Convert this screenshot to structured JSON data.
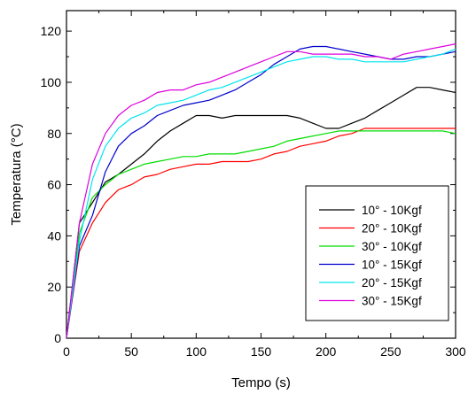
{
  "chart_data": {
    "type": "line",
    "xlabel": "Tempo (s)",
    "ylabel": "Temperatura (°C)",
    "xlim": [
      0,
      300
    ],
    "ylim": [
      0,
      128
    ],
    "xticks": [
      0,
      50,
      100,
      150,
      200,
      250,
      300
    ],
    "yticks": [
      0,
      20,
      40,
      60,
      80,
      100,
      120
    ],
    "grid": false,
    "legend_position": "bottom-right",
    "series": [
      {
        "name": "10° - 10Kgf",
        "color": "#000000",
        "x": [
          0,
          10,
          20,
          30,
          40,
          50,
          60,
          70,
          80,
          90,
          100,
          110,
          120,
          130,
          140,
          150,
          160,
          170,
          180,
          190,
          200,
          210,
          220,
          230,
          240,
          250,
          260,
          270,
          280,
          290,
          300
        ],
        "y": [
          0,
          45,
          53,
          61,
          64,
          68,
          72,
          77,
          81,
          84,
          87,
          87,
          86,
          87,
          87,
          87,
          87,
          87,
          86,
          84,
          82,
          82,
          84,
          86,
          89,
          92,
          95,
          98,
          98,
          97,
          96
        ]
      },
      {
        "name": "20° - 10Kgf",
        "color": "#ff0000",
        "x": [
          0,
          10,
          20,
          30,
          40,
          50,
          60,
          70,
          80,
          90,
          100,
          110,
          120,
          130,
          140,
          150,
          160,
          170,
          180,
          190,
          200,
          210,
          220,
          230,
          240,
          250,
          260,
          270,
          280,
          290,
          300
        ],
        "y": [
          0,
          34,
          45,
          53,
          58,
          60,
          63,
          64,
          66,
          67,
          68,
          68,
          69,
          69,
          69,
          70,
          72,
          73,
          75,
          76,
          77,
          79,
          80,
          82,
          82,
          82,
          82,
          82,
          82,
          82,
          82
        ]
      },
      {
        "name": "30° - 10Kgf",
        "color": "#00dd00",
        "x": [
          0,
          10,
          20,
          30,
          40,
          50,
          60,
          70,
          80,
          90,
          100,
          110,
          120,
          130,
          140,
          150,
          160,
          170,
          180,
          190,
          200,
          210,
          220,
          230,
          240,
          250,
          260,
          270,
          280,
          290,
          300
        ],
        "y": [
          0,
          41,
          55,
          60,
          64,
          66,
          68,
          69,
          70,
          71,
          71,
          72,
          72,
          72,
          73,
          74,
          75,
          77,
          78,
          79,
          80,
          81,
          81,
          81,
          81,
          81,
          81,
          81,
          81,
          81,
          80
        ]
      },
      {
        "name": "10° - 15Kgf",
        "color": "#0000cc",
        "x": [
          0,
          10,
          20,
          30,
          40,
          50,
          60,
          70,
          80,
          90,
          100,
          110,
          120,
          130,
          140,
          150,
          160,
          170,
          180,
          190,
          200,
          210,
          220,
          230,
          240,
          250,
          260,
          270,
          280,
          290,
          300
        ],
        "y": [
          0,
          36,
          48,
          65,
          75,
          80,
          83,
          87,
          89,
          91,
          92,
          93,
          95,
          97,
          100,
          103,
          107,
          110,
          113,
          114,
          114,
          113,
          112,
          111,
          110,
          109,
          109,
          110,
          110,
          111,
          112
        ]
      },
      {
        "name": "20° - 15Kgf",
        "color": "#00e5ee",
        "x": [
          0,
          10,
          20,
          30,
          40,
          50,
          60,
          70,
          80,
          90,
          100,
          110,
          120,
          130,
          140,
          150,
          160,
          170,
          180,
          190,
          200,
          210,
          220,
          230,
          240,
          250,
          260,
          270,
          280,
          290,
          300
        ],
        "y": [
          0,
          38,
          62,
          75,
          82,
          86,
          88,
          91,
          92,
          93,
          95,
          97,
          98,
          100,
          102,
          104,
          106,
          108,
          109,
          110,
          110,
          109,
          109,
          108,
          108,
          108,
          108,
          109,
          110,
          111,
          113
        ]
      },
      {
        "name": "30° - 15Kgf",
        "color": "#dd00dd",
        "x": [
          0,
          10,
          20,
          30,
          40,
          50,
          60,
          70,
          80,
          90,
          100,
          110,
          120,
          130,
          140,
          150,
          160,
          170,
          180,
          190,
          200,
          210,
          220,
          230,
          240,
          250,
          260,
          270,
          280,
          290,
          300
        ],
        "y": [
          0,
          45,
          68,
          80,
          87,
          91,
          93,
          96,
          97,
          97,
          99,
          100,
          102,
          104,
          106,
          108,
          110,
          112,
          112,
          111,
          111,
          111,
          111,
          110,
          110,
          109,
          111,
          112,
          113,
          114,
          115
        ]
      }
    ]
  }
}
